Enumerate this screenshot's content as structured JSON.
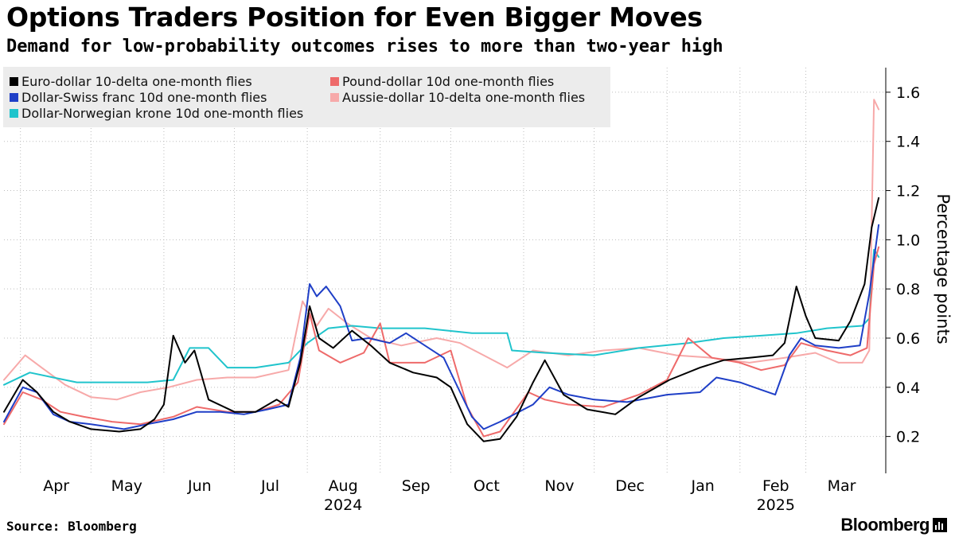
{
  "title": "Options Traders Position for Even Bigger Moves",
  "subtitle": "Demand for low-probability outcomes rises to more than two-year high",
  "source": "Source: Bloomberg",
  "brand": "Bloomberg",
  "chart_data": {
    "type": "line",
    "ylabel": "Percentage points",
    "ylim": [
      0.05,
      1.7
    ],
    "yticks": [
      "0.2",
      "0.4",
      "0.6",
      "0.8",
      "1.0",
      "1.2",
      "1.4",
      "1.6"
    ],
    "xlim": [
      "2024-03-25",
      "2025-04-04"
    ],
    "x_month_ticks": [
      {
        "date": "2024-04-01",
        "label": "Apr"
      },
      {
        "date": "2024-05-01",
        "label": "May"
      },
      {
        "date": "2024-06-01",
        "label": "Jun"
      },
      {
        "date": "2024-07-01",
        "label": "Jul"
      },
      {
        "date": "2024-08-01",
        "label": "Aug"
      },
      {
        "date": "2024-09-01",
        "label": "Sep"
      },
      {
        "date": "2024-10-01",
        "label": "Oct"
      },
      {
        "date": "2024-11-01",
        "label": "Nov"
      },
      {
        "date": "2024-12-01",
        "label": "Dec"
      },
      {
        "date": "2025-01-01",
        "label": "Jan"
      },
      {
        "date": "2025-02-01",
        "label": "Feb"
      },
      {
        "date": "2025-03-01",
        "label": "Mar"
      }
    ],
    "x_year_labels": [
      {
        "date": "2024-08-01",
        "label": "2024"
      },
      {
        "date": "2025-02-01",
        "label": "2025"
      }
    ],
    "grid": true,
    "legend_position": "top-left",
    "series": [
      {
        "name": "Euro-dollar 10-delta one-month flies",
        "color": "#000000",
        "points": [
          [
            "2024-03-25",
            0.3
          ],
          [
            "2024-04-02",
            0.43
          ],
          [
            "2024-04-08",
            0.38
          ],
          [
            "2024-04-15",
            0.3
          ],
          [
            "2024-04-22",
            0.26
          ],
          [
            "2024-05-01",
            0.23
          ],
          [
            "2024-05-13",
            0.22
          ],
          [
            "2024-05-22",
            0.23
          ],
          [
            "2024-05-28",
            0.27
          ],
          [
            "2024-06-01",
            0.33
          ],
          [
            "2024-06-05",
            0.61
          ],
          [
            "2024-06-10",
            0.5
          ],
          [
            "2024-06-14",
            0.55
          ],
          [
            "2024-06-20",
            0.35
          ],
          [
            "2024-07-01",
            0.3
          ],
          [
            "2024-07-10",
            0.3
          ],
          [
            "2024-07-19",
            0.35
          ],
          [
            "2024-07-24",
            0.32
          ],
          [
            "2024-07-29",
            0.5
          ],
          [
            "2024-08-02",
            0.73
          ],
          [
            "2024-08-06",
            0.6
          ],
          [
            "2024-08-12",
            0.56
          ],
          [
            "2024-08-20",
            0.63
          ],
          [
            "2024-08-28",
            0.57
          ],
          [
            "2024-09-05",
            0.5
          ],
          [
            "2024-09-15",
            0.46
          ],
          [
            "2024-09-25",
            0.44
          ],
          [
            "2024-10-01",
            0.4
          ],
          [
            "2024-10-08",
            0.25
          ],
          [
            "2024-10-15",
            0.18
          ],
          [
            "2024-10-22",
            0.19
          ],
          [
            "2024-10-29",
            0.28
          ],
          [
            "2024-11-05",
            0.42
          ],
          [
            "2024-11-10",
            0.51
          ],
          [
            "2024-11-18",
            0.37
          ],
          [
            "2024-11-28",
            0.31
          ],
          [
            "2024-12-10",
            0.29
          ],
          [
            "2024-12-20",
            0.36
          ],
          [
            "2025-01-02",
            0.43
          ],
          [
            "2025-01-15",
            0.48
          ],
          [
            "2025-01-25",
            0.51
          ],
          [
            "2025-02-05",
            0.52
          ],
          [
            "2025-02-15",
            0.53
          ],
          [
            "2025-02-20",
            0.58
          ],
          [
            "2025-02-25",
            0.81
          ],
          [
            "2025-03-01",
            0.69
          ],
          [
            "2025-03-05",
            0.6
          ],
          [
            "2025-03-15",
            0.59
          ],
          [
            "2025-03-20",
            0.67
          ],
          [
            "2025-03-26",
            0.82
          ],
          [
            "2025-03-29",
            1.05
          ],
          [
            "2025-04-01",
            1.17
          ]
        ]
      },
      {
        "name": "Dollar-Swiss franc 10d one-month flies",
        "color": "#1f3fc7",
        "points": [
          [
            "2024-03-25",
            0.26
          ],
          [
            "2024-04-02",
            0.4
          ],
          [
            "2024-04-08",
            0.38
          ],
          [
            "2024-04-15",
            0.29
          ],
          [
            "2024-04-22",
            0.26
          ],
          [
            "2024-05-01",
            0.25
          ],
          [
            "2024-05-15",
            0.23
          ],
          [
            "2024-05-25",
            0.25
          ],
          [
            "2024-06-05",
            0.27
          ],
          [
            "2024-06-15",
            0.3
          ],
          [
            "2024-06-25",
            0.3
          ],
          [
            "2024-07-05",
            0.29
          ],
          [
            "2024-07-15",
            0.31
          ],
          [
            "2024-07-24",
            0.33
          ],
          [
            "2024-07-29",
            0.52
          ],
          [
            "2024-08-02",
            0.82
          ],
          [
            "2024-08-05",
            0.77
          ],
          [
            "2024-08-09",
            0.81
          ],
          [
            "2024-08-15",
            0.73
          ],
          [
            "2024-08-20",
            0.59
          ],
          [
            "2024-08-27",
            0.6
          ],
          [
            "2024-09-05",
            0.58
          ],
          [
            "2024-09-12",
            0.62
          ],
          [
            "2024-09-20",
            0.57
          ],
          [
            "2024-09-28",
            0.52
          ],
          [
            "2024-10-05",
            0.38
          ],
          [
            "2024-10-10",
            0.28
          ],
          [
            "2024-10-15",
            0.23
          ],
          [
            "2024-10-22",
            0.26
          ],
          [
            "2024-10-30",
            0.3
          ],
          [
            "2024-11-05",
            0.33
          ],
          [
            "2024-11-12",
            0.4
          ],
          [
            "2024-11-20",
            0.37
          ],
          [
            "2024-12-01",
            0.35
          ],
          [
            "2024-12-15",
            0.34
          ],
          [
            "2025-01-01",
            0.37
          ],
          [
            "2025-01-15",
            0.38
          ],
          [
            "2025-01-22",
            0.44
          ],
          [
            "2025-02-01",
            0.42
          ],
          [
            "2025-02-10",
            0.39
          ],
          [
            "2025-02-16",
            0.37
          ],
          [
            "2025-02-22",
            0.53
          ],
          [
            "2025-02-27",
            0.6
          ],
          [
            "2025-03-05",
            0.57
          ],
          [
            "2025-03-15",
            0.56
          ],
          [
            "2025-03-24",
            0.57
          ],
          [
            "2025-03-28",
            0.78
          ],
          [
            "2025-04-01",
            1.06
          ]
        ]
      },
      {
        "name": "Dollar-Norwegian krone 10d one-month flies",
        "color": "#20c4cc",
        "points": [
          [
            "2024-03-25",
            0.41
          ],
          [
            "2024-04-05",
            0.46
          ],
          [
            "2024-04-15",
            0.44
          ],
          [
            "2024-04-25",
            0.42
          ],
          [
            "2024-05-10",
            0.42
          ],
          [
            "2024-05-25",
            0.42
          ],
          [
            "2024-06-05",
            0.43
          ],
          [
            "2024-06-12",
            0.56
          ],
          [
            "2024-06-20",
            0.56
          ],
          [
            "2024-06-28",
            0.48
          ],
          [
            "2024-07-10",
            0.48
          ],
          [
            "2024-07-24",
            0.5
          ],
          [
            "2024-08-01",
            0.58
          ],
          [
            "2024-08-10",
            0.64
          ],
          [
            "2024-08-20",
            0.65
          ],
          [
            "2024-09-01",
            0.64
          ],
          [
            "2024-09-20",
            0.64
          ],
          [
            "2024-10-10",
            0.62
          ],
          [
            "2024-10-25",
            0.62
          ],
          [
            "2024-10-27",
            0.55
          ],
          [
            "2024-11-10",
            0.54
          ],
          [
            "2024-12-01",
            0.53
          ],
          [
            "2024-12-20",
            0.56
          ],
          [
            "2025-01-10",
            0.58
          ],
          [
            "2025-01-25",
            0.6
          ],
          [
            "2025-02-10",
            0.61
          ],
          [
            "2025-02-25",
            0.62
          ],
          [
            "2025-03-10",
            0.64
          ],
          [
            "2025-03-25",
            0.65
          ],
          [
            "2025-03-28",
            0.68
          ],
          [
            "2025-03-30",
            0.96
          ],
          [
            "2025-04-01",
            0.93
          ]
        ]
      },
      {
        "name": "Pound-dollar 10d one-month flies",
        "color": "#ee6a6a",
        "points": [
          [
            "2024-03-25",
            0.25
          ],
          [
            "2024-04-02",
            0.38
          ],
          [
            "2024-04-10",
            0.35
          ],
          [
            "2024-04-18",
            0.3
          ],
          [
            "2024-04-28",
            0.28
          ],
          [
            "2024-05-10",
            0.26
          ],
          [
            "2024-05-22",
            0.25
          ],
          [
            "2024-06-05",
            0.28
          ],
          [
            "2024-06-15",
            0.32
          ],
          [
            "2024-06-28",
            0.3
          ],
          [
            "2024-07-10",
            0.3
          ],
          [
            "2024-07-20",
            0.33
          ],
          [
            "2024-07-28",
            0.42
          ],
          [
            "2024-08-02",
            0.7
          ],
          [
            "2024-08-06",
            0.55
          ],
          [
            "2024-08-15",
            0.5
          ],
          [
            "2024-08-25",
            0.54
          ],
          [
            "2024-09-01",
            0.66
          ],
          [
            "2024-09-05",
            0.5
          ],
          [
            "2024-09-20",
            0.5
          ],
          [
            "2024-10-01",
            0.55
          ],
          [
            "2024-10-08",
            0.32
          ],
          [
            "2024-10-15",
            0.2
          ],
          [
            "2024-10-22",
            0.22
          ],
          [
            "2024-10-28",
            0.3
          ],
          [
            "2024-11-03",
            0.38
          ],
          [
            "2024-11-10",
            0.35
          ],
          [
            "2024-11-20",
            0.33
          ],
          [
            "2024-12-05",
            0.32
          ],
          [
            "2024-12-20",
            0.37
          ],
          [
            "2025-01-01",
            0.43
          ],
          [
            "2025-01-10",
            0.6
          ],
          [
            "2025-01-20",
            0.52
          ],
          [
            "2025-02-01",
            0.5
          ],
          [
            "2025-02-10",
            0.47
          ],
          [
            "2025-02-20",
            0.49
          ],
          [
            "2025-02-27",
            0.58
          ],
          [
            "2025-03-10",
            0.55
          ],
          [
            "2025-03-20",
            0.53
          ],
          [
            "2025-03-27",
            0.56
          ],
          [
            "2025-03-30",
            0.9
          ],
          [
            "2025-04-01",
            0.97
          ]
        ]
      },
      {
        "name": "Aussie-dollar 10-delta one-month flies",
        "color": "#f7a9a9",
        "points": [
          [
            "2024-03-25",
            0.43
          ],
          [
            "2024-04-03",
            0.53
          ],
          [
            "2024-04-10",
            0.48
          ],
          [
            "2024-04-20",
            0.41
          ],
          [
            "2024-05-01",
            0.36
          ],
          [
            "2024-05-12",
            0.35
          ],
          [
            "2024-05-22",
            0.38
          ],
          [
            "2024-06-03",
            0.4
          ],
          [
            "2024-06-15",
            0.43
          ],
          [
            "2024-06-28",
            0.44
          ],
          [
            "2024-07-10",
            0.44
          ],
          [
            "2024-07-24",
            0.47
          ],
          [
            "2024-07-30",
            0.75
          ],
          [
            "2024-08-05",
            0.65
          ],
          [
            "2024-08-10",
            0.72
          ],
          [
            "2024-08-18",
            0.66
          ],
          [
            "2024-08-28",
            0.6
          ],
          [
            "2024-09-10",
            0.57
          ],
          [
            "2024-09-25",
            0.6
          ],
          [
            "2024-10-05",
            0.58
          ],
          [
            "2024-10-15",
            0.53
          ],
          [
            "2024-10-25",
            0.48
          ],
          [
            "2024-11-05",
            0.55
          ],
          [
            "2024-11-20",
            0.53
          ],
          [
            "2024-12-05",
            0.55
          ],
          [
            "2024-12-20",
            0.56
          ],
          [
            "2025-01-05",
            0.53
          ],
          [
            "2025-01-20",
            0.52
          ],
          [
            "2025-02-05",
            0.5
          ],
          [
            "2025-02-20",
            0.52
          ],
          [
            "2025-03-05",
            0.54
          ],
          [
            "2025-03-15",
            0.5
          ],
          [
            "2025-03-25",
            0.5
          ],
          [
            "2025-03-28",
            0.55
          ],
          [
            "2025-03-30",
            1.57
          ],
          [
            "2025-04-01",
            1.53
          ]
        ]
      }
    ]
  }
}
